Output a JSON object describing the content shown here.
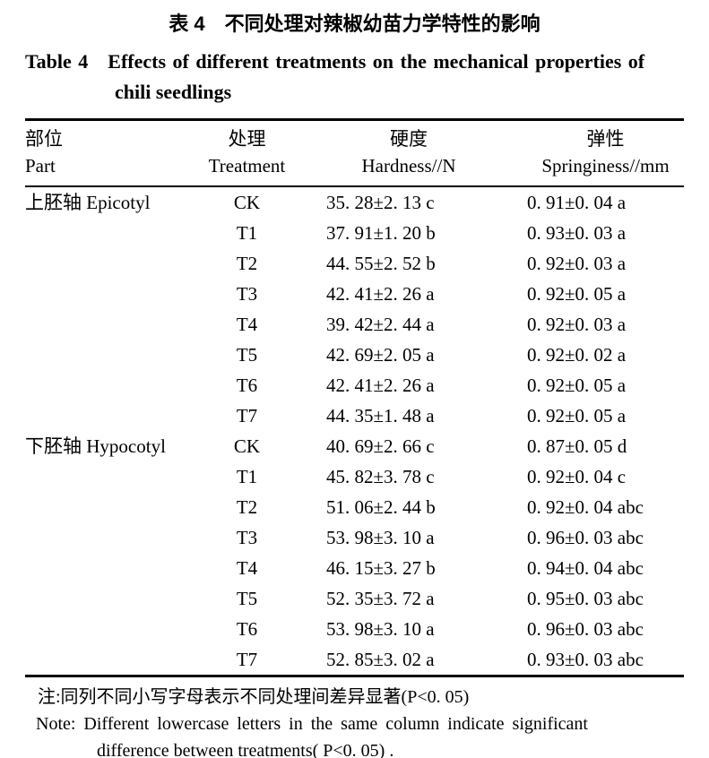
{
  "page": {
    "background": "#ffffff",
    "text_color": "#000000"
  },
  "titles": {
    "cn": "表 4　不同处理对辣椒幼苗力学特性的影响",
    "en_line1": "Table 4　Effects of different treatments on the mechanical properties of",
    "en_line2": "chili seedlings"
  },
  "table": {
    "columns": [
      {
        "id": "part",
        "cn": "部位",
        "en": "Part"
      },
      {
        "id": "treatment",
        "cn": "处理",
        "en": "Treatment"
      },
      {
        "id": "hardness",
        "cn": "硬度",
        "en": "Hardness//N"
      },
      {
        "id": "springiness",
        "cn": "弹性",
        "en": "Springiness//mm"
      }
    ],
    "rows": [
      {
        "part": "上胚轴 Epicotyl",
        "treatment": "CK",
        "hardness": "35. 28±2. 13 c",
        "springiness": "0. 91±0. 04 a"
      },
      {
        "part": "",
        "treatment": "T1",
        "hardness": "37. 91±1. 20 b",
        "springiness": "0. 93±0. 03 a"
      },
      {
        "part": "",
        "treatment": "T2",
        "hardness": "44. 55±2. 52 b",
        "springiness": "0. 92±0. 03 a"
      },
      {
        "part": "",
        "treatment": "T3",
        "hardness": "42. 41±2. 26 a",
        "springiness": "0. 92±0. 05 a"
      },
      {
        "part": "",
        "treatment": "T4",
        "hardness": "39. 42±2. 44 a",
        "springiness": "0. 92±0. 03 a"
      },
      {
        "part": "",
        "treatment": "T5",
        "hardness": "42. 69±2. 05 a",
        "springiness": "0. 92±0. 02 a"
      },
      {
        "part": "",
        "treatment": "T6",
        "hardness": "42. 41±2. 26 a",
        "springiness": "0. 92±0. 05 a"
      },
      {
        "part": "",
        "treatment": "T7",
        "hardness": "44. 35±1. 48 a",
        "springiness": "0. 92±0. 05 a"
      },
      {
        "part": "下胚轴 Hypocotyl",
        "treatment": "CK",
        "hardness": "40. 69±2. 66 c",
        "springiness": "0. 87±0. 05 d"
      },
      {
        "part": "",
        "treatment": "T1",
        "hardness": "45. 82±3. 78 c",
        "springiness": "0. 92±0. 04 c"
      },
      {
        "part": "",
        "treatment": "T2",
        "hardness": "51. 06±2. 44 b",
        "springiness": "0. 92±0. 04 abc"
      },
      {
        "part": "",
        "treatment": "T3",
        "hardness": "53. 98±3. 10 a",
        "springiness": "0. 96±0. 03 abc"
      },
      {
        "part": "",
        "treatment": "T4",
        "hardness": "46. 15±3. 27 b",
        "springiness": "0. 94±0. 04 abc"
      },
      {
        "part": "",
        "treatment": "T5",
        "hardness": "52. 35±3. 72 a",
        "springiness": "0. 95±0. 03 abc"
      },
      {
        "part": "",
        "treatment": "T6",
        "hardness": "53. 98±3. 10 a",
        "springiness": "0. 96±0. 03 abc"
      },
      {
        "part": "",
        "treatment": "T7",
        "hardness": "52. 85±3. 02 a",
        "springiness": "0. 93±0. 03 abc"
      }
    ]
  },
  "notes": {
    "cn": "注:同列不同小写字母表示不同处理间差异显著(P<0. 05)",
    "en_line1": "Note: Different lowercase letters in the same column indicate significant",
    "en_line2": "difference between treatments( P<0. 05) ."
  }
}
